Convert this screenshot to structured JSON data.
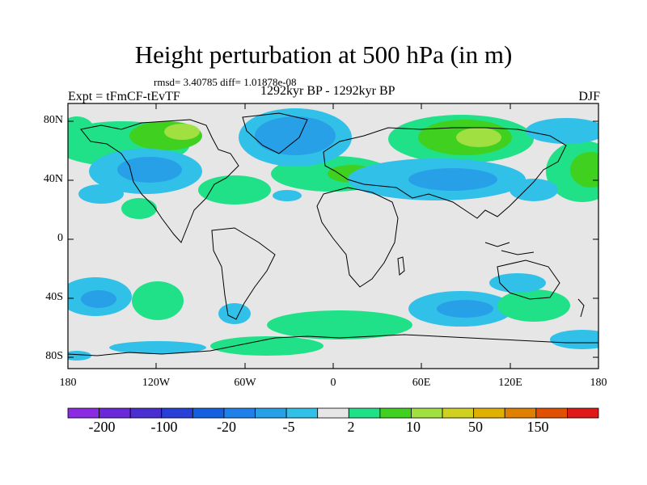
{
  "title": "Height perturbation at 500 hPa (in m)",
  "stats": "rmsd= 3.40785 diff= 1.01878e-08",
  "left_label": "Expt = tFmCF-tEvTF",
  "center_label": "1292kyr BP - 1292kyr BP",
  "right_label": "DJF",
  "map_data": {
    "type": "heatmap",
    "lat_ticks": [
      "80N",
      "40N",
      "0",
      "40S",
      "80S"
    ],
    "lon_ticks": [
      "180",
      "120W",
      "60W",
      "0",
      "60E",
      "120E",
      "180"
    ],
    "xlim": [
      -180,
      180
    ],
    "ylim": [
      -90,
      90
    ],
    "colors": {
      "ocean": "#e6e6e6",
      "coast": "#000000"
    }
  },
  "colorbar": {
    "colors": [
      "#8a2be2",
      "#6a28d8",
      "#4b2ed0",
      "#2840d8",
      "#1460e0",
      "#1e80e8",
      "#28a0e8",
      "#30c0e8",
      "#e6e6e6",
      "#20e088",
      "#40d020",
      "#a0e040",
      "#d0d020",
      "#e0b000",
      "#e08000",
      "#e05000",
      "#e01818"
    ],
    "labels": [
      "-200",
      "-100",
      "-20",
      "-5",
      "2",
      "10",
      "50",
      "150"
    ]
  }
}
